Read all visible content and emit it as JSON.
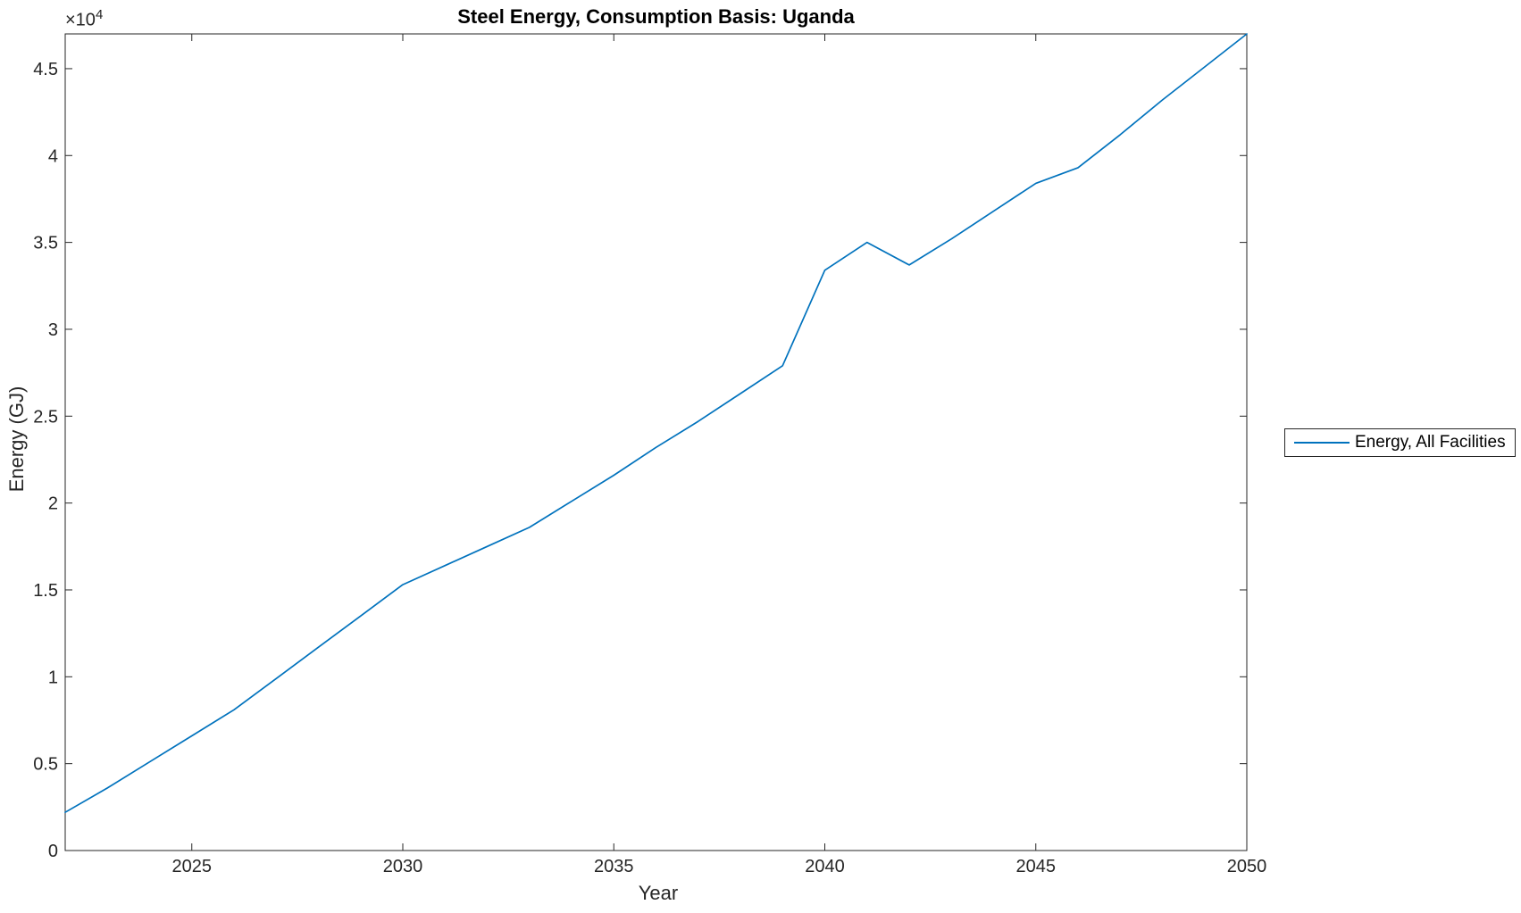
{
  "figure": {
    "background": "#ffffff",
    "axis_color": "#262626",
    "title_color": "#000000"
  },
  "chart_data": {
    "type": "line",
    "title": "Steel Energy, Consumption Basis: Uganda",
    "xlabel": "Year",
    "ylabel": "Energy (GJ)",
    "y_axis_multiplier": {
      "base": "×10",
      "exponent": "4"
    },
    "xlim": [
      2022,
      2050
    ],
    "ylim": [
      0,
      47000
    ],
    "grid": false,
    "x_tick_values": [
      2025,
      2030,
      2035,
      2040,
      2045,
      2050
    ],
    "x_tick_labels": [
      "2025",
      "2030",
      "2035",
      "2040",
      "2045",
      "2050"
    ],
    "y_tick_values": [
      0,
      5000,
      10000,
      15000,
      20000,
      25000,
      30000,
      35000,
      40000,
      45000
    ],
    "y_tick_labels": [
      "0",
      "0.5",
      "1",
      "1.5",
      "2",
      "2.5",
      "3",
      "3.5",
      "4",
      "4.5"
    ],
    "legend": {
      "position": "east-outside",
      "border_color": "#262626"
    },
    "series": [
      {
        "name": "Energy, All Facilities",
        "color": "#0072BD",
        "x": [
          2022,
          2023,
          2024,
          2025,
          2026,
          2027,
          2028,
          2029,
          2030,
          2031,
          2032,
          2033,
          2034,
          2035,
          2036,
          2037,
          2038,
          2039,
          2040,
          2041,
          2042,
          2043,
          2044,
          2045,
          2046,
          2047,
          2048,
          2049,
          2050
        ],
        "values": [
          2200,
          3600,
          5100,
          6600,
          8100,
          9900,
          11700,
          13500,
          15300,
          16400,
          17500,
          18600,
          20100,
          21600,
          23200,
          24700,
          26300,
          27900,
          33400,
          35000,
          33700,
          35200,
          36800,
          38400,
          39300,
          41200,
          43200,
          45100,
          47000
        ]
      }
    ]
  }
}
